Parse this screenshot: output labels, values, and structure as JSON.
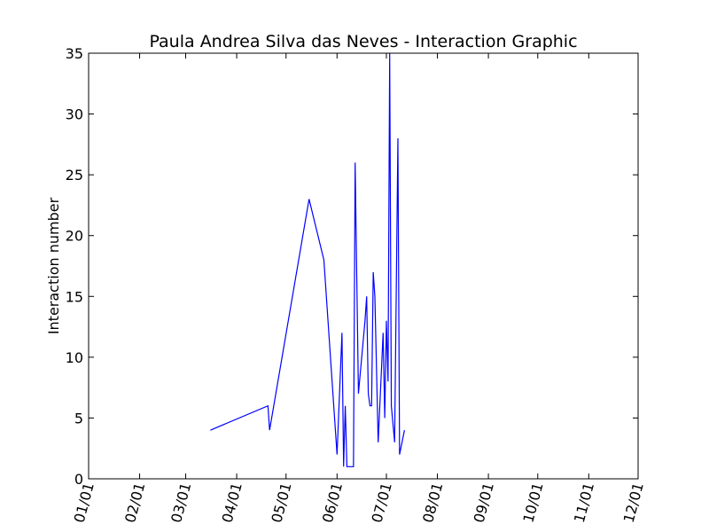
{
  "chart_data": {
    "type": "line",
    "title": "Paula Andrea Silva das Neves - Interaction Graphic",
    "xlabel": "",
    "ylabel": "Interaction number",
    "x_tick_labels": [
      "01/01",
      "02/01",
      "03/01",
      "04/01",
      "05/01",
      "06/01",
      "07/01",
      "08/01",
      "09/01",
      "10/01",
      "11/01",
      "12/01"
    ],
    "y_tick_labels": [
      "0",
      "5",
      "10",
      "15",
      "20",
      "25",
      "30",
      "35"
    ],
    "ylim": [
      0,
      35
    ],
    "grid": false,
    "line_color": "#0000ff",
    "series": [
      {
        "values": [
          {
            "x": "03/16",
            "y": 4
          },
          {
            "x": "04/20",
            "y": 6
          },
          {
            "x": "04/21",
            "y": 4
          },
          {
            "x": "05/15",
            "y": 23
          },
          {
            "x": "05/24",
            "y": 18
          },
          {
            "x": "06/01",
            "y": 2
          },
          {
            "x": "06/04",
            "y": 12
          },
          {
            "x": "06/05",
            "y": 1
          },
          {
            "x": "06/06",
            "y": 6
          },
          {
            "x": "06/07",
            "y": 1
          },
          {
            "x": "06/11",
            "y": 1
          },
          {
            "x": "06/12",
            "y": 26
          },
          {
            "x": "06/14",
            "y": 7
          },
          {
            "x": "06/18",
            "y": 13
          },
          {
            "x": "06/19",
            "y": 15
          },
          {
            "x": "06/20",
            "y": 7
          },
          {
            "x": "06/21",
            "y": 6
          },
          {
            "x": "06/22",
            "y": 6
          },
          {
            "x": "06/23",
            "y": 17
          },
          {
            "x": "06/24",
            "y": 15
          },
          {
            "x": "06/26",
            "y": 3
          },
          {
            "x": "06/29",
            "y": 12
          },
          {
            "x": "06/30",
            "y": 5
          },
          {
            "x": "07/01",
            "y": 13
          },
          {
            "x": "07/02",
            "y": 8
          },
          {
            "x": "07/03",
            "y": 35
          },
          {
            "x": "07/04",
            "y": 6
          },
          {
            "x": "07/06",
            "y": 3
          },
          {
            "x": "07/08",
            "y": 28
          },
          {
            "x": "07/09",
            "y": 2
          },
          {
            "x": "07/12",
            "y": 4
          }
        ]
      }
    ]
  }
}
